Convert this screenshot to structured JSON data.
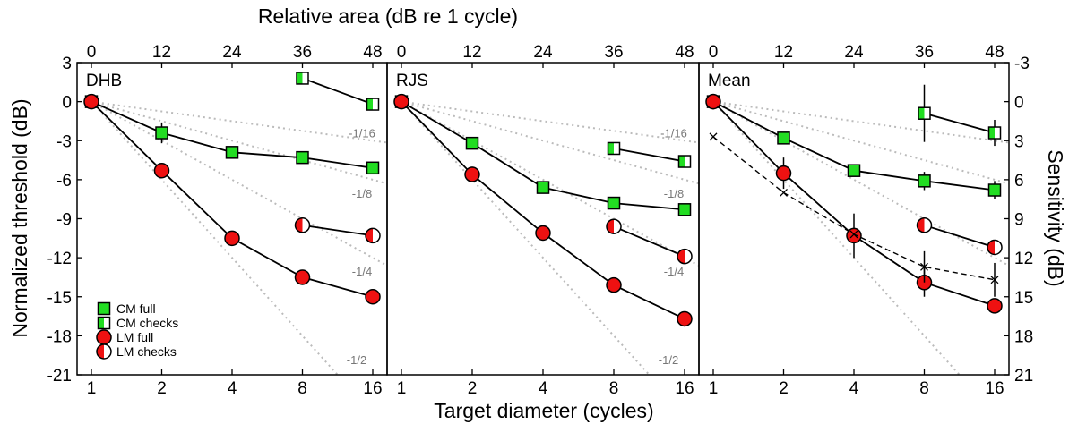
{
  "chart_data": {
    "type": "line",
    "top_xlabel": "Relative area (dB re 1 cycle)",
    "xlabel": "Target diameter (cycles)",
    "ylabel": "Normalized threshold (dB)",
    "y2label": "Sensitivity (dB)",
    "x_ticks": [
      1,
      2,
      4,
      8,
      16
    ],
    "x_tick_labels": [
      "1",
      "2",
      "4",
      "8",
      "16"
    ],
    "top_tick_labels": [
      "0",
      "12",
      "24",
      "36",
      "48"
    ],
    "y_ticks": [
      3,
      0,
      -3,
      -6,
      -9,
      -12,
      -15,
      -18,
      -21
    ],
    "y_tick_labels": [
      "3",
      "0",
      "-3",
      "-6",
      "-9",
      "-12",
      "-15",
      "-18",
      "-21"
    ],
    "y2_tick_labels": [
      "-3",
      "0",
      "3",
      "6",
      "9",
      "12",
      "15",
      "18",
      "21"
    ],
    "ylim": [
      -21,
      3
    ],
    "xscale": "log2",
    "grid": false,
    "colors": {
      "cm": "#22dd22",
      "lm": "#ee1111",
      "guide": "#bbbbbb"
    },
    "legend": {
      "placement": "bottom-left",
      "entries": [
        {
          "label": "CM full",
          "marker": "square",
          "fill": "full",
          "color": "cm"
        },
        {
          "label": "CM checks",
          "marker": "square",
          "fill": "half",
          "color": "cm"
        },
        {
          "label": "LM full",
          "marker": "circle",
          "fill": "full",
          "color": "lm"
        },
        {
          "label": "LM checks",
          "marker": "circle",
          "fill": "half",
          "color": "lm"
        }
      ]
    },
    "slope_guides": [
      {
        "slope": -0.0625,
        "label": "-1/16"
      },
      {
        "slope": -0.125,
        "label": "-1/8"
      },
      {
        "slope": -0.25,
        "label": "-1/4"
      },
      {
        "slope": -0.5,
        "label": "-1/2"
      }
    ],
    "panels": [
      {
        "label": "DHB",
        "slope_labels_shown": [
          "-1/16",
          "-1/8",
          "-1/4",
          "-1/2"
        ],
        "series": [
          {
            "name": "CM full",
            "marker": "square",
            "fill": "full",
            "color": "cm",
            "x": [
              1,
              2,
              4,
              8,
              16
            ],
            "y": [
              0,
              -2.4,
              -3.9,
              -4.3,
              -5.1
            ],
            "err": [
              0.2,
              0.8,
              0.3,
              0.3,
              0.3
            ]
          },
          {
            "name": "CM checks",
            "marker": "square",
            "fill": "half",
            "color": "cm",
            "x": [
              8,
              16
            ],
            "y": [
              1.8,
              -0.2
            ],
            "err": [
              0.3,
              0.3
            ]
          },
          {
            "name": "LM full",
            "marker": "circle",
            "fill": "full",
            "color": "lm",
            "x": [
              1,
              2,
              4,
              8,
              16
            ],
            "y": [
              0,
              -5.3,
              -10.5,
              -13.5,
              -15.0
            ],
            "err": [
              0.2,
              0.5,
              0.3,
              0.3,
              0.3
            ]
          },
          {
            "name": "LM checks",
            "marker": "circle",
            "fill": "half",
            "color": "lm",
            "x": [
              8,
              16
            ],
            "y": [
              -9.5,
              -10.3
            ],
            "err": [
              0.3,
              0.3
            ]
          }
        ]
      },
      {
        "label": "RJS",
        "slope_labels_shown": [
          "-1/16",
          "-1/8",
          "-1/4",
          "-1/2"
        ],
        "series": [
          {
            "name": "CM full",
            "marker": "square",
            "fill": "full",
            "color": "cm",
            "x": [
              1,
              2,
              4,
              8,
              16
            ],
            "y": [
              0,
              -3.2,
              -6.6,
              -7.8,
              -8.3
            ],
            "err": [
              0.2,
              0.3,
              0.3,
              0.3,
              0.3
            ]
          },
          {
            "name": "CM checks",
            "marker": "square",
            "fill": "half",
            "color": "cm",
            "x": [
              8,
              16
            ],
            "y": [
              -3.6,
              -4.6
            ],
            "err": [
              0.3,
              0.3
            ]
          },
          {
            "name": "LM full",
            "marker": "circle",
            "fill": "full",
            "color": "lm",
            "x": [
              1,
              2,
              4,
              8,
              16
            ],
            "y": [
              0,
              -5.6,
              -10.1,
              -14.1,
              -16.7
            ],
            "err": [
              0.2,
              0.6,
              0.3,
              0.3,
              0.3
            ]
          },
          {
            "name": "LM checks",
            "marker": "circle",
            "fill": "half",
            "color": "lm",
            "x": [
              8,
              16
            ],
            "y": [
              -9.6,
              -11.9
            ],
            "err": [
              0.3,
              0.3
            ]
          }
        ]
      },
      {
        "label": "Mean",
        "slope_labels_shown": [],
        "series": [
          {
            "name": "CM full",
            "marker": "square",
            "fill": "full",
            "color": "cm",
            "x": [
              1,
              2,
              4,
              8,
              16
            ],
            "y": [
              0,
              -2.8,
              -5.3,
              -6.1,
              -6.8
            ],
            "err": [
              0.2,
              0.4,
              0.4,
              0.7,
              0.7
            ]
          },
          {
            "name": "CM checks",
            "marker": "square",
            "fill": "half",
            "color": "cm",
            "x": [
              8,
              16
            ],
            "y": [
              -0.9,
              -2.4
            ],
            "err": [
              2.2,
              1.0
            ]
          },
          {
            "name": "LM full",
            "marker": "circle",
            "fill": "full",
            "color": "lm",
            "x": [
              1,
              2,
              4,
              8,
              16
            ],
            "y": [
              0,
              -5.5,
              -10.3,
              -13.9,
              -15.7
            ],
            "err": [
              0.6,
              1.2,
              1.7,
              1.1,
              0.5
            ]
          },
          {
            "name": "LM checks",
            "marker": "circle",
            "fill": "half",
            "color": "lm",
            "x": [
              8,
              16
            ],
            "y": [
              -9.5,
              -11.2
            ],
            "err": [
              0.6,
              0.4
            ]
          },
          {
            "marker": "x",
            "fill": "none",
            "color": "black",
            "style": "dashed",
            "x": [
              1,
              2,
              4,
              8,
              16
            ],
            "y": [
              -2.7,
              -7.0,
              -10.2,
              -12.7,
              -13.7
            ],
            "err": [
              0,
              0,
              0,
              1.2,
              1.3
            ]
          }
        ]
      }
    ]
  }
}
